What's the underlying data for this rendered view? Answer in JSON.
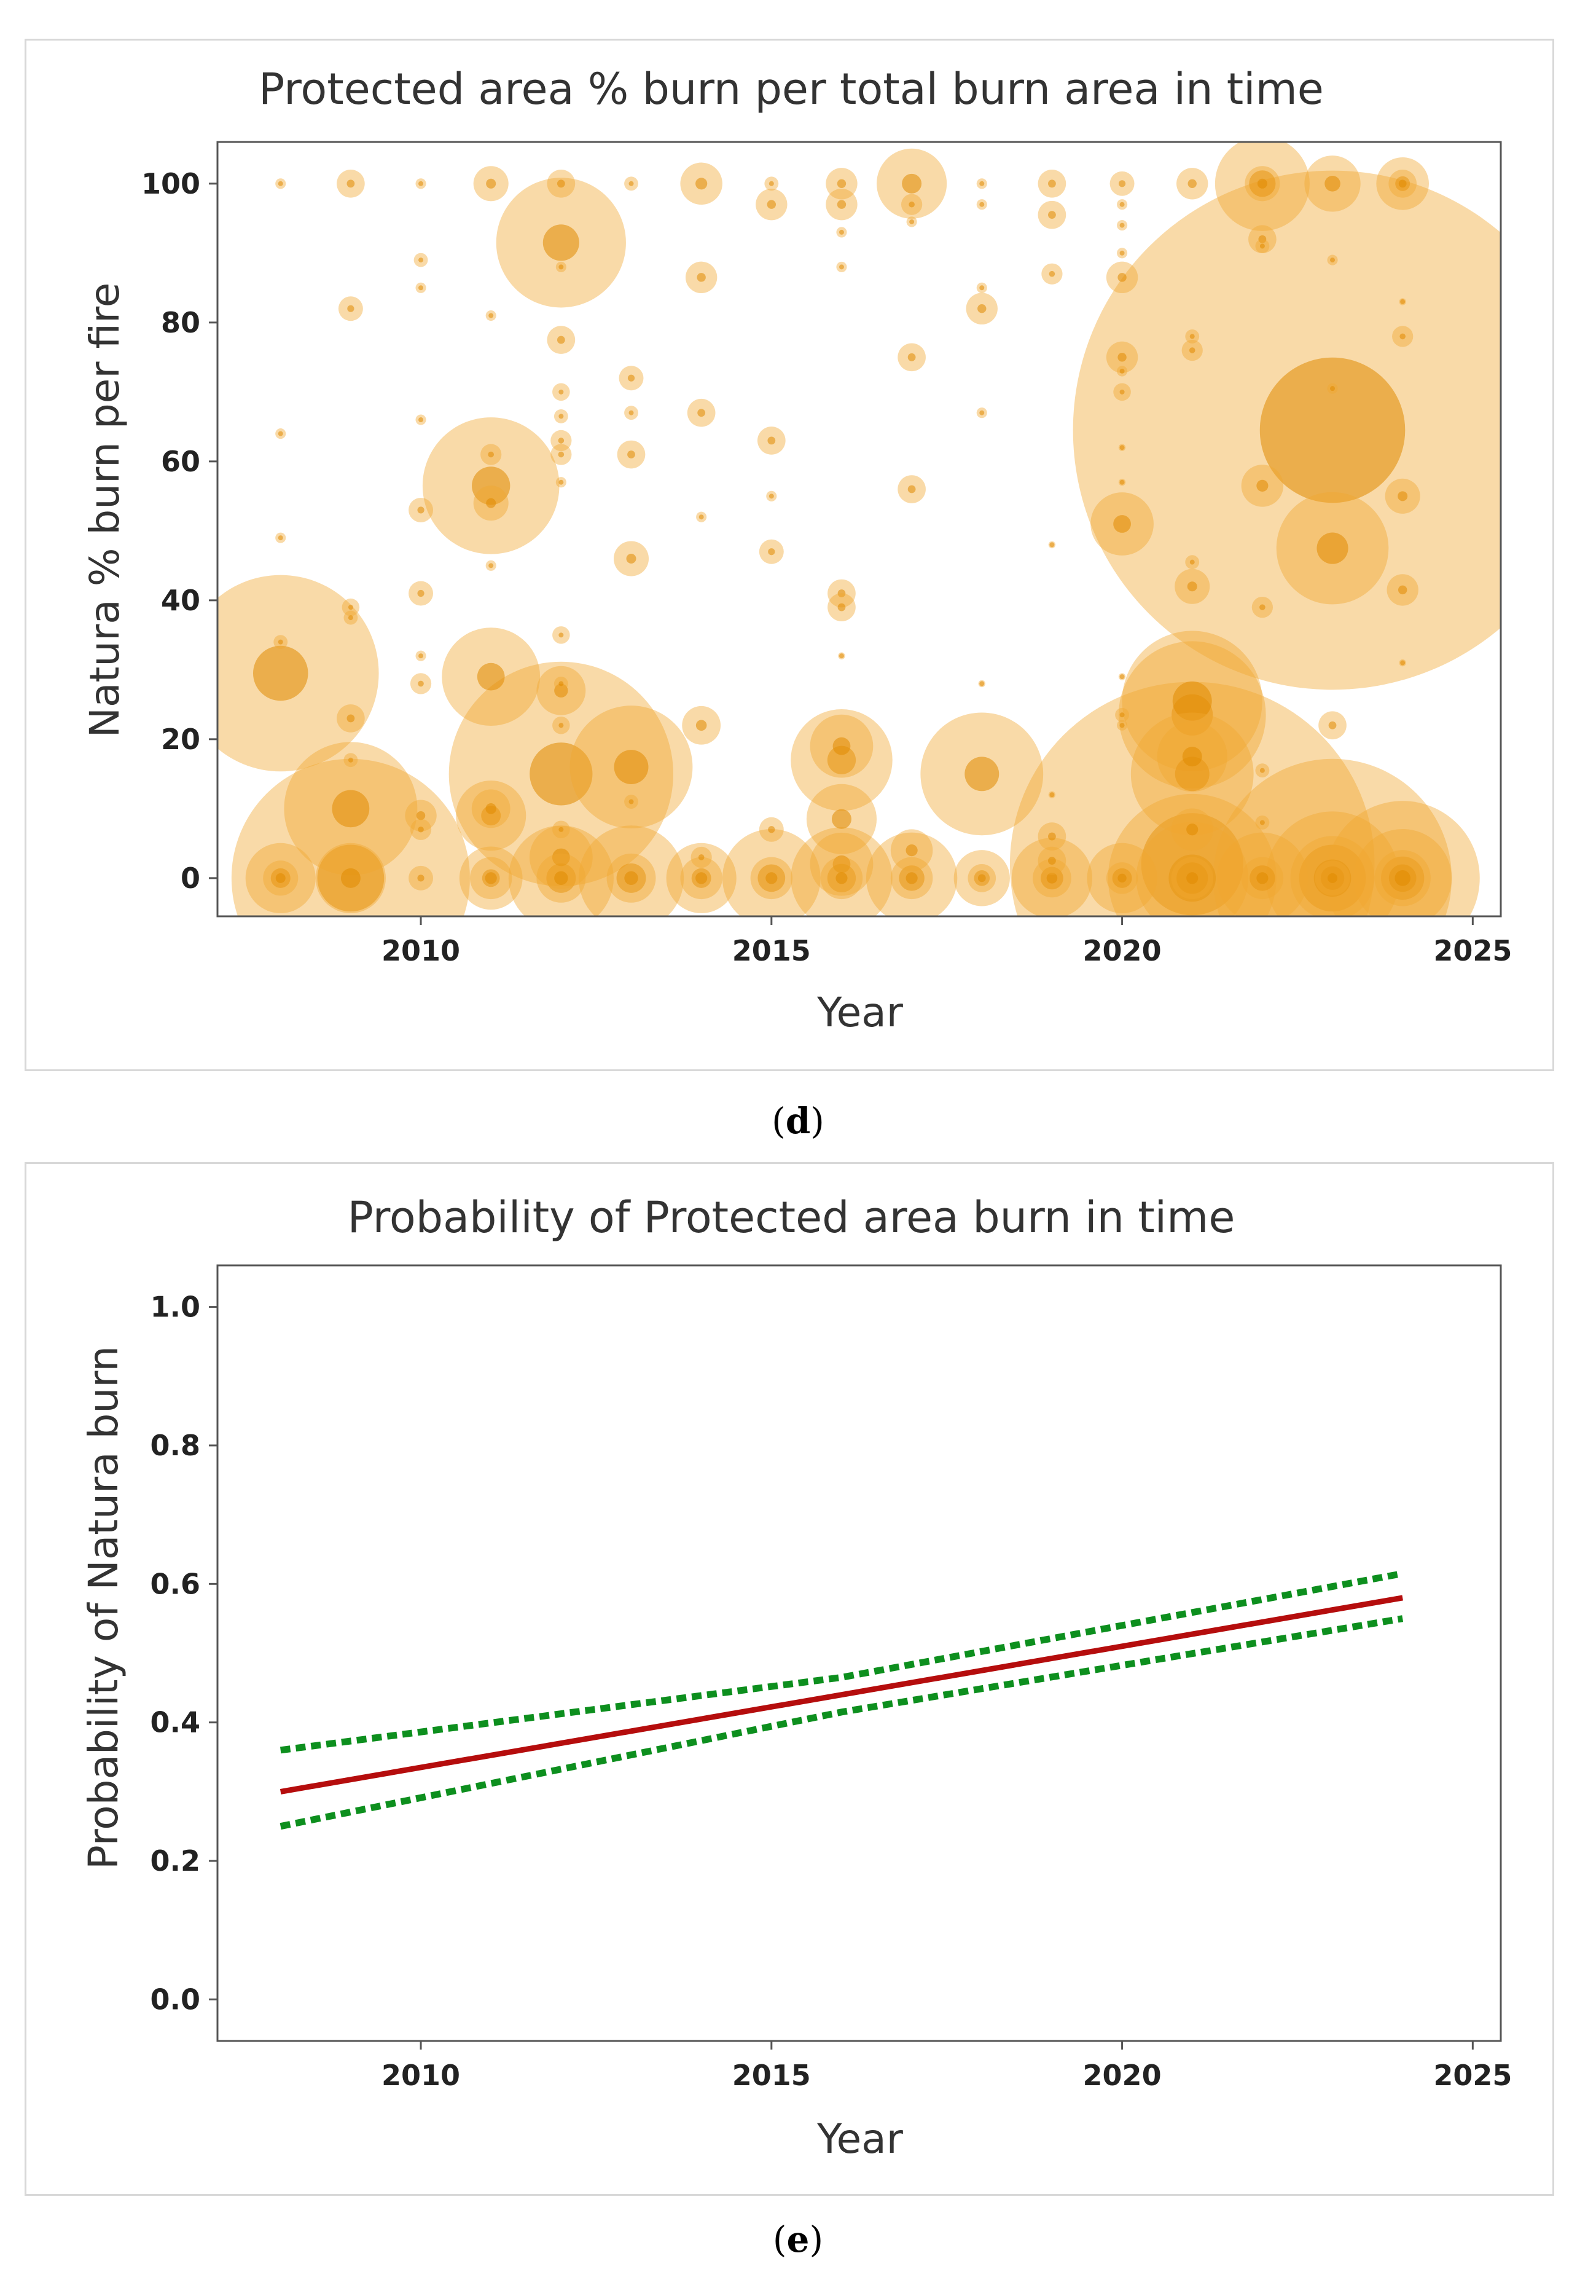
{
  "colors": {
    "bubble": "#f0a830",
    "bubble_dark": "#e08a00",
    "fit_line": "#b50d0d",
    "ci_line": "#0d8f1e",
    "axis": "#555555",
    "title_text": "#333333"
  },
  "captions": {
    "d": "(d)",
    "e": "(e)"
  },
  "caption_parts": {
    "d": "d",
    "e": "e"
  },
  "chart_data": [
    {
      "type": "scatter",
      "subtype": "bubble",
      "title": "Protected area % burn per total burn area in time",
      "xlabel": "Year",
      "ylabel": "Natura % burn per fire",
      "xlim": [
        2007.1,
        2025.4
      ],
      "ylim": [
        -5.5,
        106
      ],
      "xticks": [
        2010,
        2015,
        2020,
        2025
      ],
      "yticks": [
        0,
        20,
        40,
        60,
        80,
        100
      ],
      "xtick_labels": [
        "2010",
        "2015",
        "2020",
        "2025"
      ],
      "ytick_labels": [
        "0",
        "20",
        "40",
        "60",
        "80",
        "100"
      ],
      "grid": false,
      "points": [
        {
          "x": 2008,
          "y": 100,
          "r": 0.15
        },
        {
          "x": 2008,
          "y": 64,
          "r": 0.15
        },
        {
          "x": 2008,
          "y": 49,
          "r": 0.15
        },
        {
          "x": 2008,
          "y": 34,
          "r": 0.2
        },
        {
          "x": 2008,
          "y": 29.5,
          "r": 2.8
        },
        {
          "x": 2008,
          "y": 0,
          "r": 1.0
        },
        {
          "x": 2008,
          "y": 0,
          "r": 0.5
        },
        {
          "x": 2009,
          "y": 100,
          "r": 0.4
        },
        {
          "x": 2009,
          "y": 82,
          "r": 0.35
        },
        {
          "x": 2009,
          "y": 39,
          "r": 0.25
        },
        {
          "x": 2009,
          "y": 37.5,
          "r": 0.2
        },
        {
          "x": 2009,
          "y": 23,
          "r": 0.4
        },
        {
          "x": 2009,
          "y": 17,
          "r": 0.2
        },
        {
          "x": 2009,
          "y": 10,
          "r": 1.9
        },
        {
          "x": 2009,
          "y": 0,
          "r": 3.4
        },
        {
          "x": 2009,
          "y": 0,
          "r": 1.0
        },
        {
          "x": 2010,
          "y": 100,
          "r": 0.15
        },
        {
          "x": 2010,
          "y": 89,
          "r": 0.2
        },
        {
          "x": 2010,
          "y": 85,
          "r": 0.15
        },
        {
          "x": 2010,
          "y": 66,
          "r": 0.15
        },
        {
          "x": 2010,
          "y": 53,
          "r": 0.35
        },
        {
          "x": 2010,
          "y": 41,
          "r": 0.35
        },
        {
          "x": 2010,
          "y": 32,
          "r": 0.15
        },
        {
          "x": 2010,
          "y": 28,
          "r": 0.3
        },
        {
          "x": 2010,
          "y": 9,
          "r": 0.45
        },
        {
          "x": 2010,
          "y": 7,
          "r": 0.3
        },
        {
          "x": 2010,
          "y": 0,
          "r": 0.35
        },
        {
          "x": 2011,
          "y": 100,
          "r": 0.5
        },
        {
          "x": 2011,
          "y": 81,
          "r": 0.15
        },
        {
          "x": 2011,
          "y": 61,
          "r": 0.3
        },
        {
          "x": 2011,
          "y": 56.5,
          "r": 1.95
        },
        {
          "x": 2011,
          "y": 54,
          "r": 0.5
        },
        {
          "x": 2011,
          "y": 45,
          "r": 0.15
        },
        {
          "x": 2011,
          "y": 29,
          "r": 1.4
        },
        {
          "x": 2011,
          "y": 10,
          "r": 0.55
        },
        {
          "x": 2011,
          "y": 9,
          "r": 1.0
        },
        {
          "x": 2011,
          "y": 0,
          "r": 0.6
        },
        {
          "x": 2011,
          "y": 0,
          "r": 0.9
        },
        {
          "x": 2012,
          "y": 100,
          "r": 0.4
        },
        {
          "x": 2012,
          "y": 91.5,
          "r": 1.85
        },
        {
          "x": 2012,
          "y": 88,
          "r": 0.15
        },
        {
          "x": 2012,
          "y": 77.5,
          "r": 0.4
        },
        {
          "x": 2012,
          "y": 70,
          "r": 0.25
        },
        {
          "x": 2012,
          "y": 66.5,
          "r": 0.2
        },
        {
          "x": 2012,
          "y": 63,
          "r": 0.3
        },
        {
          "x": 2012,
          "y": 61,
          "r": 0.3
        },
        {
          "x": 2012,
          "y": 57,
          "r": 0.15
        },
        {
          "x": 2012,
          "y": 35,
          "r": 0.25
        },
        {
          "x": 2012,
          "y": 28,
          "r": 0.2
        },
        {
          "x": 2012,
          "y": 27,
          "r": 0.7
        },
        {
          "x": 2012,
          "y": 22,
          "r": 0.25
        },
        {
          "x": 2012,
          "y": 15,
          "r": 3.2
        },
        {
          "x": 2012,
          "y": 7,
          "r": 0.25
        },
        {
          "x": 2012,
          "y": 3,
          "r": 0.9
        },
        {
          "x": 2012,
          "y": 0,
          "r": 1.5
        },
        {
          "x": 2012,
          "y": 0,
          "r": 0.7
        },
        {
          "x": 2013,
          "y": 100,
          "r": 0.2
        },
        {
          "x": 2013,
          "y": 72,
          "r": 0.35
        },
        {
          "x": 2013,
          "y": 67,
          "r": 0.2
        },
        {
          "x": 2013,
          "y": 61,
          "r": 0.4
        },
        {
          "x": 2013,
          "y": 46,
          "r": 0.5
        },
        {
          "x": 2013,
          "y": 16,
          "r": 1.75
        },
        {
          "x": 2013,
          "y": 11,
          "r": 0.2
        },
        {
          "x": 2013,
          "y": 0,
          "r": 1.5
        },
        {
          "x": 2013,
          "y": 0,
          "r": 0.7
        },
        {
          "x": 2014,
          "y": 100,
          "r": 0.6
        },
        {
          "x": 2014,
          "y": 86.5,
          "r": 0.45
        },
        {
          "x": 2014,
          "y": 67,
          "r": 0.4
        },
        {
          "x": 2014,
          "y": 52,
          "r": 0.15
        },
        {
          "x": 2014,
          "y": 22,
          "r": 0.55
        },
        {
          "x": 2014,
          "y": 3,
          "r": 0.3
        },
        {
          "x": 2014,
          "y": 0,
          "r": 1.0
        },
        {
          "x": 2014,
          "y": 0,
          "r": 0.6
        },
        {
          "x": 2015,
          "y": 100,
          "r": 0.2
        },
        {
          "x": 2015,
          "y": 97,
          "r": 0.45
        },
        {
          "x": 2015,
          "y": 63,
          "r": 0.4
        },
        {
          "x": 2015,
          "y": 55,
          "r": 0.15
        },
        {
          "x": 2015,
          "y": 47,
          "r": 0.35
        },
        {
          "x": 2015,
          "y": 7,
          "r": 0.35
        },
        {
          "x": 2015,
          "y": 0,
          "r": 1.4
        },
        {
          "x": 2015,
          "y": 0,
          "r": 0.6
        },
        {
          "x": 2016,
          "y": 100,
          "r": 0.45
        },
        {
          "x": 2016,
          "y": 97,
          "r": 0.45
        },
        {
          "x": 2016,
          "y": 93,
          "r": 0.15
        },
        {
          "x": 2016,
          "y": 88,
          "r": 0.15
        },
        {
          "x": 2016,
          "y": 41,
          "r": 0.4
        },
        {
          "x": 2016,
          "y": 39,
          "r": 0.4
        },
        {
          "x": 2016,
          "y": 32,
          "r": 0.1
        },
        {
          "x": 2016,
          "y": 19,
          "r": 0.9
        },
        {
          "x": 2016,
          "y": 17,
          "r": 1.45
        },
        {
          "x": 2016,
          "y": 8.5,
          "r": 1.0
        },
        {
          "x": 2016,
          "y": 2,
          "r": 0.9
        },
        {
          "x": 2016,
          "y": 0,
          "r": 1.45
        },
        {
          "x": 2016,
          "y": 0,
          "r": 0.6
        },
        {
          "x": 2017,
          "y": 100,
          "r": 1.0
        },
        {
          "x": 2017,
          "y": 97,
          "r": 0.3
        },
        {
          "x": 2017,
          "y": 94.5,
          "r": 0.15
        },
        {
          "x": 2017,
          "y": 75,
          "r": 0.4
        },
        {
          "x": 2017,
          "y": 56,
          "r": 0.4
        },
        {
          "x": 2017,
          "y": 4,
          "r": 0.6
        },
        {
          "x": 2017,
          "y": 0,
          "r": 1.3
        },
        {
          "x": 2017,
          "y": 0,
          "r": 0.6
        },
        {
          "x": 2018,
          "y": 100,
          "r": 0.15
        },
        {
          "x": 2018,
          "y": 97,
          "r": 0.15
        },
        {
          "x": 2018,
          "y": 85,
          "r": 0.15
        },
        {
          "x": 2018,
          "y": 82,
          "r": 0.45
        },
        {
          "x": 2018,
          "y": 67,
          "r": 0.15
        },
        {
          "x": 2018,
          "y": 28,
          "r": 0.1
        },
        {
          "x": 2018,
          "y": 15,
          "r": 1.75
        },
        {
          "x": 2018,
          "y": 0,
          "r": 0.8
        },
        {
          "x": 2018,
          "y": 0,
          "r": 0.4
        },
        {
          "x": 2019,
          "y": 100,
          "r": 0.4
        },
        {
          "x": 2019,
          "y": 95.5,
          "r": 0.4
        },
        {
          "x": 2019,
          "y": 87,
          "r": 0.3
        },
        {
          "x": 2019,
          "y": 48,
          "r": 0.1
        },
        {
          "x": 2019,
          "y": 12,
          "r": 0.1
        },
        {
          "x": 2019,
          "y": 6,
          "r": 0.4
        },
        {
          "x": 2019,
          "y": 2.5,
          "r": 0.4
        },
        {
          "x": 2019,
          "y": 0,
          "r": 1.15
        },
        {
          "x": 2019,
          "y": 0,
          "r": 0.55
        },
        {
          "x": 2020,
          "y": 100,
          "r": 0.35
        },
        {
          "x": 2020,
          "y": 97,
          "r": 0.15
        },
        {
          "x": 2020,
          "y": 94,
          "r": 0.15
        },
        {
          "x": 2020,
          "y": 90,
          "r": 0.15
        },
        {
          "x": 2020,
          "y": 86.5,
          "r": 0.45
        },
        {
          "x": 2020,
          "y": 75,
          "r": 0.45
        },
        {
          "x": 2020,
          "y": 73,
          "r": 0.15
        },
        {
          "x": 2020,
          "y": 70,
          "r": 0.25
        },
        {
          "x": 2020,
          "y": 62,
          "r": 0.1
        },
        {
          "x": 2020,
          "y": 57,
          "r": 0.1
        },
        {
          "x": 2020,
          "y": 51,
          "r": 0.9
        },
        {
          "x": 2020,
          "y": 29,
          "r": 0.1
        },
        {
          "x": 2020,
          "y": 23.5,
          "r": 0.2
        },
        {
          "x": 2020,
          "y": 22,
          "r": 0.15
        },
        {
          "x": 2020,
          "y": 0,
          "r": 1.0
        },
        {
          "x": 2020,
          "y": 0,
          "r": 0.45
        },
        {
          "x": 2021,
          "y": 100,
          "r": 0.45
        },
        {
          "x": 2021,
          "y": 78,
          "r": 0.2
        },
        {
          "x": 2021,
          "y": 76,
          "r": 0.3
        },
        {
          "x": 2021,
          "y": 45.5,
          "r": 0.2
        },
        {
          "x": 2021,
          "y": 42,
          "r": 0.5
        },
        {
          "x": 2021,
          "y": 25.5,
          "r": 2.0
        },
        {
          "x": 2021,
          "y": 23.5,
          "r": 2.1
        },
        {
          "x": 2021,
          "y": 17.5,
          "r": 1.0
        },
        {
          "x": 2021,
          "y": 15,
          "r": 1.75
        },
        {
          "x": 2021,
          "y": 7,
          "r": 0.6
        },
        {
          "x": 2021,
          "y": 2,
          "r": 5.2
        },
        {
          "x": 2021,
          "y": 0,
          "r": 2.4
        },
        {
          "x": 2021,
          "y": 0,
          "r": 1.6
        },
        {
          "x": 2021,
          "y": 0,
          "r": 0.6
        },
        {
          "x": 2022,
          "y": 100,
          "r": 1.35
        },
        {
          "x": 2022,
          "y": 100,
          "r": 0.5
        },
        {
          "x": 2022,
          "y": 92,
          "r": 0.4
        },
        {
          "x": 2022,
          "y": 91,
          "r": 0.2
        },
        {
          "x": 2022,
          "y": 56.5,
          "r": 0.6
        },
        {
          "x": 2022,
          "y": 39,
          "r": 0.3
        },
        {
          "x": 2022,
          "y": 15.5,
          "r": 0.2
        },
        {
          "x": 2022,
          "y": 8,
          "r": 0.2
        },
        {
          "x": 2022,
          "y": 0,
          "r": 1.3
        },
        {
          "x": 2022,
          "y": 0,
          "r": 0.6
        },
        {
          "x": 2023,
          "y": 100,
          "r": 0.8
        },
        {
          "x": 2023,
          "y": 89,
          "r": 0.15
        },
        {
          "x": 2023,
          "y": 70.5,
          "r": 0.15
        },
        {
          "x": 2023,
          "y": 64.5,
          "r": 7.4
        },
        {
          "x": 2023,
          "y": 47.5,
          "r": 1.6
        },
        {
          "x": 2023,
          "y": 22,
          "r": 0.4
        },
        {
          "x": 2023,
          "y": 0,
          "r": 3.4
        },
        {
          "x": 2023,
          "y": 0,
          "r": 1.9
        },
        {
          "x": 2023,
          "y": 0,
          "r": 1.2
        },
        {
          "x": 2023,
          "y": 0,
          "r": 0.5
        },
        {
          "x": 2024,
          "y": 100,
          "r": 0.75
        },
        {
          "x": 2024,
          "y": 100,
          "r": 0.4
        },
        {
          "x": 2024,
          "y": 83,
          "r": 0.1
        },
        {
          "x": 2024,
          "y": 78,
          "r": 0.3
        },
        {
          "x": 2024,
          "y": 55,
          "r": 0.5
        },
        {
          "x": 2024,
          "y": 41.5,
          "r": 0.45
        },
        {
          "x": 2024,
          "y": 31,
          "r": 0.1
        },
        {
          "x": 2024,
          "y": 0,
          "r": 2.2
        },
        {
          "x": 2024,
          "y": 0,
          "r": 1.4
        },
        {
          "x": 2024,
          "y": 0,
          "r": 0.8
        }
      ]
    },
    {
      "type": "line",
      "title": "Probability of Protected area burn in time",
      "xlabel": "Year",
      "ylabel": "Probability of Natura burn",
      "xlim": [
        2007.1,
        2025.4
      ],
      "ylim": [
        -0.06,
        1.06
      ],
      "xticks": [
        2010,
        2015,
        2020,
        2025
      ],
      "yticks": [
        0.0,
        0.2,
        0.4,
        0.6,
        0.8,
        1.0
      ],
      "xtick_labels": [
        "2010",
        "2015",
        "2020",
        "2025"
      ],
      "ytick_labels": [
        "0.0",
        "0.2",
        "0.4",
        "0.6",
        "0.8",
        "1.0"
      ],
      "grid": false,
      "series": [
        {
          "name": "fit",
          "style": "solid",
          "x": [
            2008,
            2024
          ],
          "values": [
            0.3,
            0.58
          ]
        },
        {
          "name": "upper-ci",
          "style": "dotted",
          "x": [
            2008,
            2016,
            2024
          ],
          "values": [
            0.36,
            0.465,
            0.615
          ]
        },
        {
          "name": "lower-ci",
          "style": "dotted",
          "x": [
            2008,
            2016,
            2024
          ],
          "values": [
            0.25,
            0.415,
            0.55
          ]
        }
      ]
    }
  ]
}
